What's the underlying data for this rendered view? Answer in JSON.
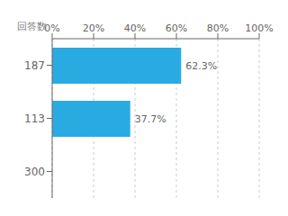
{
  "chart_data": {
    "type": "bar",
    "orientation": "horizontal",
    "categories": [
      "187",
      "113",
      "300"
    ],
    "values": [
      62.3,
      37.7,
      null
    ],
    "value_labels": [
      "62.3%",
      "37.7%",
      null
    ],
    "data_labels": true,
    "color": "#29abe2",
    "y_label": "回答数",
    "xlim": [
      0,
      100
    ],
    "xticks": [
      {
        "value": 0,
        "label": "0%"
      },
      {
        "value": 20,
        "label": "20%"
      },
      {
        "value": 40,
        "label": "40%"
      },
      {
        "value": 60,
        "label": "60%"
      },
      {
        "value": 80,
        "label": "80%"
      },
      {
        "value": 100,
        "label": "100%"
      }
    ],
    "grid": true
  }
}
